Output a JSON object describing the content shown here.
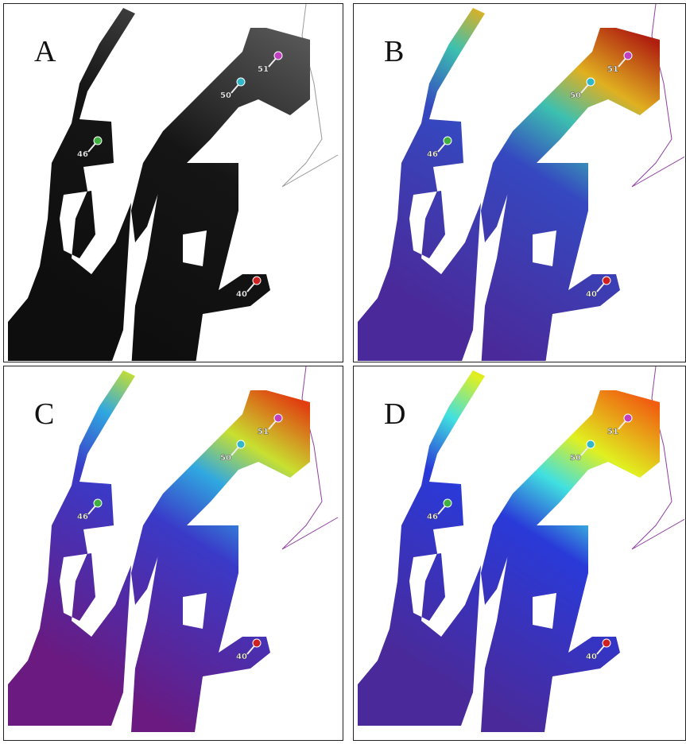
{
  "panels": [
    {
      "label": "A",
      "palette": "gray",
      "pins": [
        {
          "label": "51",
          "color": "#c040c0"
        },
        {
          "label": "50",
          "color": "#30b8c8"
        },
        {
          "label": "46",
          "color": "#40b040"
        },
        {
          "label": "40",
          "color": "#d02020"
        }
      ]
    },
    {
      "label": "B",
      "palette": "noisy",
      "pins": [
        {
          "label": "51",
          "color": "#c040c0"
        },
        {
          "label": "50",
          "color": "#30b8c8"
        },
        {
          "label": "46",
          "color": "#40b040"
        },
        {
          "label": "40",
          "color": "#d02020"
        }
      ]
    },
    {
      "label": "C",
      "palette": "smooth",
      "pins": [
        {
          "label": "51",
          "color": "#c040c0"
        },
        {
          "label": "50",
          "color": "#30b8c8"
        },
        {
          "label": "46",
          "color": "#40b040"
        },
        {
          "label": "40",
          "color": "#d02020"
        }
      ]
    },
    {
      "label": "D",
      "palette": "rainbow",
      "pins": [
        {
          "label": "51",
          "color": "#c040c0"
        },
        {
          "label": "50",
          "color": "#30b8c8"
        },
        {
          "label": "46",
          "color": "#40b040"
        },
        {
          "label": "40",
          "color": "#d02020"
        }
      ]
    }
  ]
}
